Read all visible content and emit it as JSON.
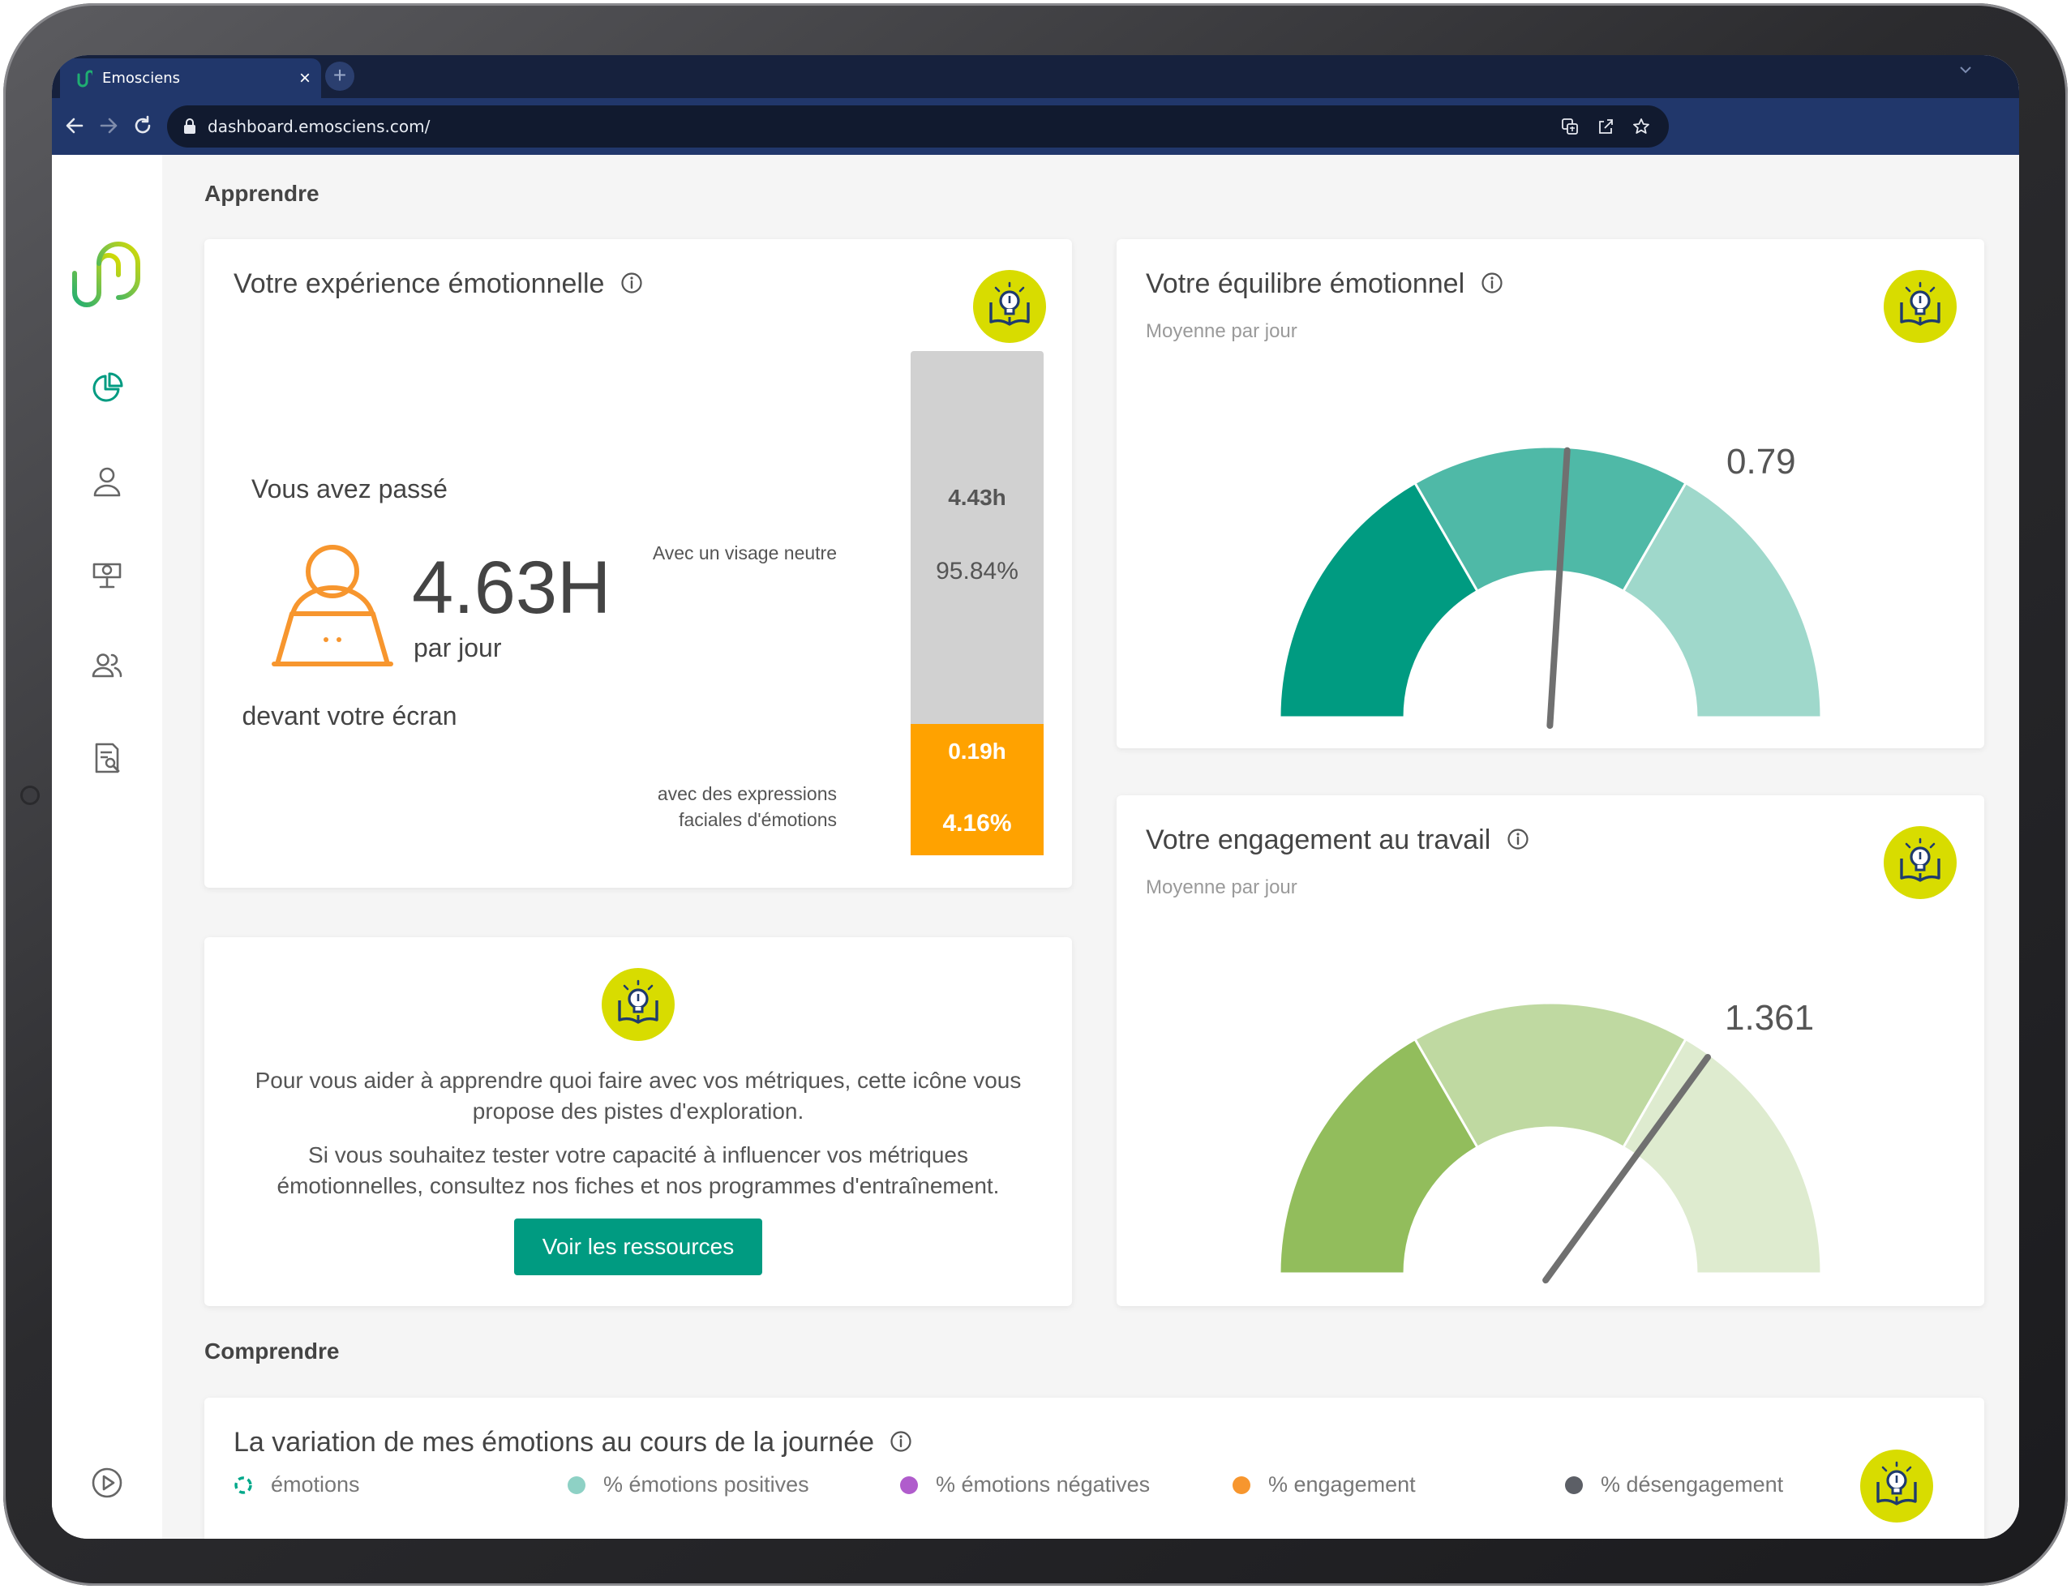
{
  "browser": {
    "tab_title": "Emosciens",
    "tab_close": "×",
    "new_tab": "+",
    "url": "dashboard.emosciens.com/"
  },
  "sidebar": {
    "items": [
      "dashboard-icon",
      "user-icon",
      "training-icon",
      "team-icon",
      "report-icon",
      "play-icon"
    ]
  },
  "sections": {
    "learn": "Apprendre",
    "understand": "Comprendre"
  },
  "experience": {
    "title": "Votre expérience émotionnelle",
    "you_spent": "Vous avez passé",
    "hours": "4.63H",
    "per_day": "par jour",
    "in_front": "devant votre écran",
    "neutral_label": "Avec un visage neutre",
    "neutral_hours": "4.43h",
    "neutral_pct": "95.84%",
    "neutral_fraction": 0.9584,
    "emotion_label_line1": "avec des expressions",
    "emotion_label_line2": "faciales d'émotions",
    "emotion_hours": "0.19h",
    "emotion_pct": "4.16%"
  },
  "balance": {
    "title": "Votre équilibre émotionnel",
    "subtitle": "Moyenne par jour",
    "value_label": "0.79",
    "needle_fraction": 0.52,
    "colors": [
      "#009b81",
      "#4fb9a7",
      "#9fd8cb"
    ]
  },
  "engagement": {
    "title": "Votre engagement au travail",
    "subtitle": "Moyenne par jour",
    "value_label": "1.361",
    "needle_fraction": 0.7,
    "colors": [
      "#92bd5c",
      "#bfd9a1",
      "#deebcf"
    ]
  },
  "tips": {
    "paragraph1_line1": "Pour vous aider à apprendre quoi faire avec vos métriques, cette icône vous",
    "paragraph1_line2": "propose des pistes d'exploration.",
    "paragraph2_line1": "Si vous souhaitez tester votre capacité à influencer vos métriques",
    "paragraph2_line2": "émotionnelles, consultez nos fiches et nos programmes d'entraînement.",
    "button": "Voir les ressources"
  },
  "variation": {
    "title": "La variation de mes émotions au cours de la journée",
    "legend": [
      {
        "label": "émotions",
        "color": "#00a88a"
      },
      {
        "label": "% émotions positives",
        "color": "#8ed1c5"
      },
      {
        "label": "% émotions négatives",
        "color": "#b05ccc"
      },
      {
        "label": "% engagement",
        "color": "#f7962e"
      },
      {
        "label": "% désengagement",
        "color": "#5c5f66"
      }
    ]
  },
  "colors": {
    "accent": "#009b81",
    "bulb_badge": "#d8dc00",
    "neutral_bar": "#d1d1d1",
    "emotion_bar": "#ffa200",
    "chrome": "#21376b"
  }
}
